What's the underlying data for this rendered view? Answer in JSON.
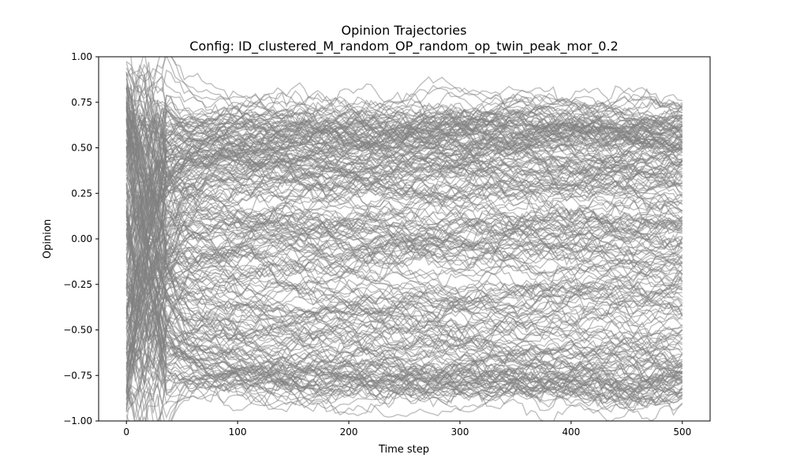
{
  "chart_data": {
    "type": "line",
    "title": "Opinion Trajectories",
    "subtitle": "Config: ID_clustered_M_random_OP_random_op_twin_peak_mor_0.2",
    "xlabel": "Time step",
    "ylabel": "Opinion",
    "xlim": [
      -25,
      525
    ],
    "ylim": [
      -1.0,
      1.0
    ],
    "x_ticks": [
      0,
      100,
      200,
      300,
      400,
      500
    ],
    "x_tick_labels": [
      "0",
      "100",
      "200",
      "300",
      "400",
      "500"
    ],
    "y_ticks": [
      -1.0,
      -0.75,
      -0.5,
      -0.25,
      0.0,
      0.25,
      0.5,
      0.75,
      1.0
    ],
    "y_tick_labels": [
      "−1.00",
      "−0.75",
      "−0.50",
      "−0.25",
      "0.00",
      "0.25",
      "0.50",
      "0.75",
      "1.00"
    ],
    "grid": false,
    "legend": "none",
    "time_steps": 500,
    "line_color": "#808080",
    "line_alpha": 0.5,
    "clusters": [
      {
        "center": 0.57,
        "spread": 0.1
      },
      {
        "center": 0.0,
        "spread": 0.08
      },
      {
        "center": -0.45,
        "spread": 0.14
      },
      {
        "center": -0.78,
        "spread": 0.05
      },
      {
        "center": 0.3,
        "spread": 0.12
      }
    ],
    "final_opinion_range": [
      -0.85,
      0.86
    ]
  }
}
